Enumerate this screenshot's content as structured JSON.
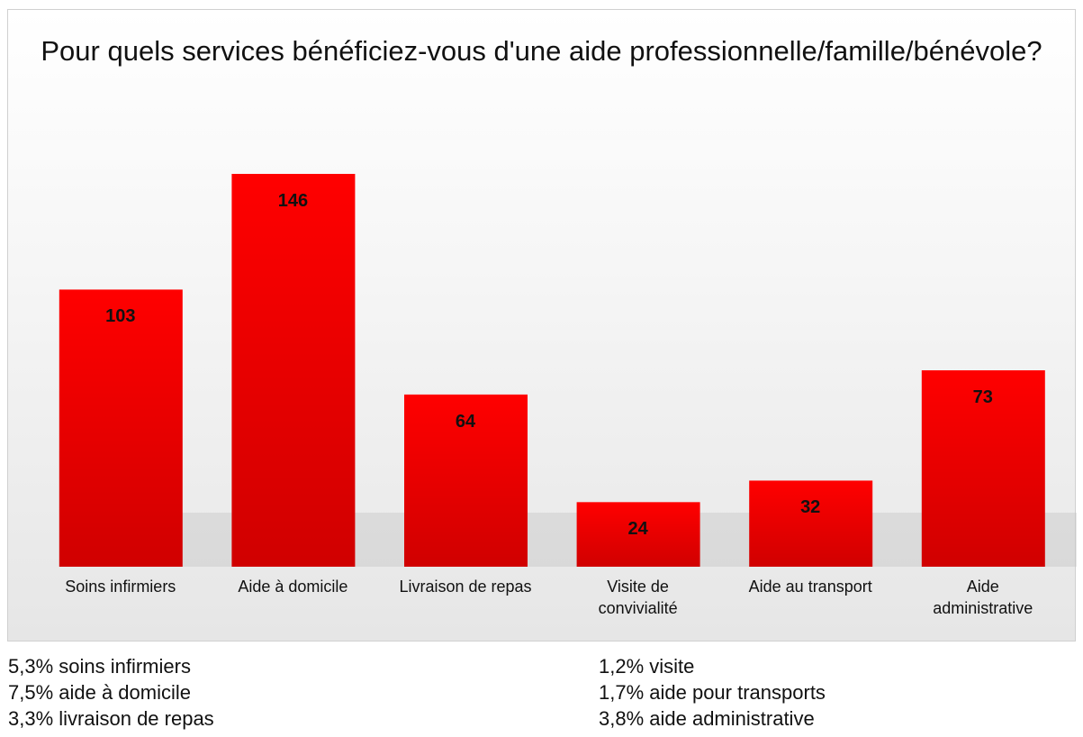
{
  "chart_data": {
    "type": "bar",
    "title": "Pour quels services bénéficiez-vous d'une aide professionnelle/famille/bénévole?",
    "categories": [
      "Soins infirmiers",
      "Aide à domicile",
      "Livraison de repas",
      "Visite de convivialité",
      "Aide au transport",
      "Aide administrative"
    ],
    "values": [
      103,
      146,
      64,
      24,
      32,
      73
    ],
    "color": "#ee0000"
  },
  "notes": {
    "left": [
      "5,3% soins infirmiers",
      "7,5% aide à domicile",
      "3,3% livraison de repas"
    ],
    "right": [
      "1,2% visite",
      "1,7% aide pour transports",
      "3,8% aide administrative"
    ]
  }
}
